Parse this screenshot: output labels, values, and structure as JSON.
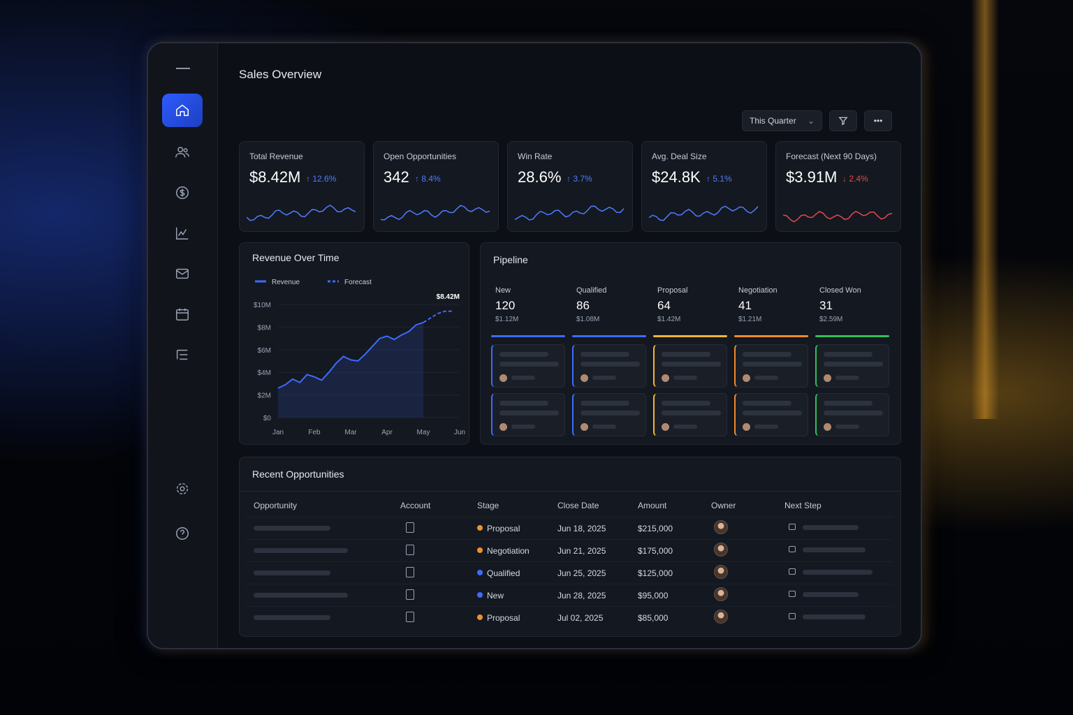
{
  "header": {
    "title": "Sales Overview",
    "period": "This Quarter"
  },
  "kpis": [
    {
      "label": "Total Revenue",
      "value": "$8.42M",
      "change": "↑ 12.6%",
      "color": "#4f7dff"
    },
    {
      "label": "Open Opportunities",
      "value": "342",
      "change": "↑ 8.4%",
      "color": "#4f7dff"
    },
    {
      "label": "Win Rate",
      "value": "28.6%",
      "change": "↑ 3.7%",
      "color": "#4f7dff"
    },
    {
      "label": "Avg. Deal Size",
      "value": "$24.8K",
      "change": "↑ 5.1%",
      "color": "#4f7dff"
    },
    {
      "label": "Forecast (Next 90 Days)",
      "value": "$3.91M",
      "change": "↓ 2.4%",
      "color": "#e5484d"
    }
  ],
  "revenue_chart": {
    "type": "line",
    "title": "Revenue Over Time",
    "annotation": "$8.42M",
    "x": [
      0,
      0.2,
      0.4,
      0.6,
      0.8,
      1.0,
      1.2,
      1.4,
      1.6,
      1.8,
      2.0,
      2.2,
      2.4,
      2.6,
      2.8,
      3.0,
      3.2,
      3.4,
      3.6,
      3.8,
      4.0,
      4.2,
      4.4,
      4.6,
      4.8
    ],
    "xlim": [
      0,
      5
    ],
    "xticks": [
      {
        "value": 0,
        "label": "Jan"
      },
      {
        "value": 1,
        "label": "Feb"
      },
      {
        "value": 2,
        "label": "Mar"
      },
      {
        "value": 3,
        "label": "Apr"
      },
      {
        "value": 4,
        "label": "May"
      },
      {
        "value": 5,
        "label": "Jun"
      }
    ],
    "ylim": [
      0,
      10000000
    ],
    "yticks": [
      {
        "value": 0,
        "label": "$0"
      },
      {
        "value": 2000000,
        "label": "$2M"
      },
      {
        "value": 4000000,
        "label": "$4M"
      },
      {
        "value": 6000000,
        "label": "$6M"
      },
      {
        "value": 8000000,
        "label": "$8M"
      },
      {
        "value": 10000000,
        "label": "$10M"
      }
    ],
    "grid": true,
    "series": [
      {
        "name": "Revenue",
        "color": "#3d6bff",
        "line_style": "solid",
        "values": [
          2600000,
          2900000,
          3400000,
          3100000,
          3800000,
          3600000,
          3300000,
          4000000,
          4800000,
          5400000,
          5100000,
          5000000,
          5600000,
          6300000,
          7000000,
          7200000,
          6900000,
          7300000,
          7600000,
          8200000,
          8400000,
          null,
          null,
          null,
          null
        ]
      },
      {
        "name": "Forecast",
        "color": "#3d6bff",
        "line_style": "dashed",
        "values": [
          null,
          null,
          null,
          null,
          null,
          null,
          null,
          null,
          null,
          null,
          null,
          null,
          null,
          null,
          null,
          null,
          null,
          null,
          null,
          null,
          8400000,
          8800000,
          9200000,
          9400000,
          9400000
        ]
      }
    ]
  },
  "pipeline": {
    "title": "Pipeline",
    "stages": [
      {
        "name": "New",
        "count": "120",
        "amount": "$1.12M",
        "color": "#3d6bff"
      },
      {
        "name": "Qualified",
        "count": "86",
        "amount": "$1.08M",
        "color": "#3d6bff"
      },
      {
        "name": "Proposal",
        "count": "64",
        "amount": "$1.42M",
        "color": "#f2b632"
      },
      {
        "name": "Negotiation",
        "count": "41",
        "amount": "$1.21M",
        "color": "#f08a2b"
      },
      {
        "name": "Closed Won",
        "count": "31",
        "amount": "$2.59M",
        "color": "#2fbf5a"
      }
    ]
  },
  "table": {
    "title": "Recent Opportunities",
    "columns": [
      "Opportunity",
      "Account",
      "Stage",
      "Close Date",
      "Amount",
      "Owner",
      "Next Step"
    ],
    "rows": [
      {
        "stage": "Proposal",
        "stage_color": "#f0922b",
        "close_date": "Jun 18, 2025",
        "amount": "$215,000"
      },
      {
        "stage": "Negotiation",
        "stage_color": "#f0922b",
        "close_date": "Jun 21, 2025",
        "amount": "$175,000"
      },
      {
        "stage": "Qualified",
        "stage_color": "#3d6bff",
        "close_date": "Jun 25, 2025",
        "amount": "$125,000"
      },
      {
        "stage": "New",
        "stage_color": "#3d6bff",
        "close_date": "Jun 28, 2025",
        "amount": "$95,000"
      },
      {
        "stage": "Proposal",
        "stage_color": "#f0922b",
        "close_date": "Jul 02, 2025",
        "amount": "$85,000"
      }
    ]
  }
}
